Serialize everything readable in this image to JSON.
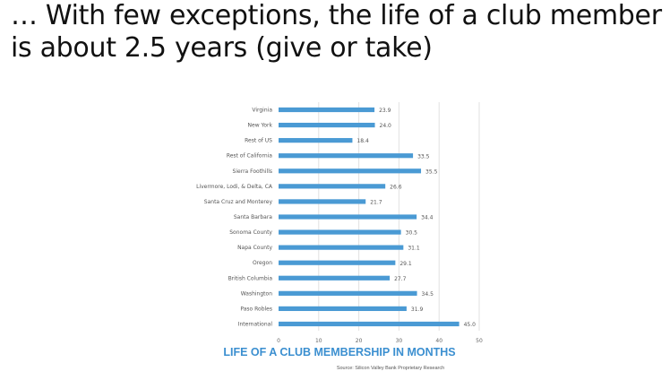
{
  "slide": {
    "title_line1": "… With few exceptions, the life of a club member",
    "title_line2": "is about 2.5 years (give or take)"
  },
  "colors": {
    "bar": "#4a9ad4",
    "chart_title": "#3b8fd0",
    "grid": "#e2e2e2"
  },
  "chart_data": {
    "type": "bar",
    "orientation": "horizontal",
    "categories": [
      "Virginia",
      "New York",
      "Rest of US",
      "Rest of California",
      "Sierra Foothills",
      "Livermore, Lodi, & Delta, CA",
      "Santa Cruz and Monterey",
      "Santa Barbara",
      "Sonoma County",
      "Napa County",
      "Oregon",
      "British Columbia",
      "Washington",
      "Paso Robles",
      "International"
    ],
    "values": [
      23.9,
      24.0,
      18.4,
      33.5,
      35.5,
      26.6,
      21.7,
      34.4,
      30.5,
      31.1,
      29.1,
      27.7,
      34.5,
      31.9,
      45.0
    ],
    "value_labels": [
      "23.9",
      "24.0",
      "18.4",
      "33.5",
      "35.5",
      "26.6",
      "21.7",
      "34.4",
      "30.5",
      "31.1",
      "29.1",
      "27.7",
      "34.5",
      "31.9",
      "45.0"
    ],
    "xlim": [
      0,
      50
    ],
    "x_ticks": [
      "0",
      "10",
      "20",
      "30",
      "40",
      "50"
    ],
    "grid": true,
    "title": "LIFE OF A CLUB MEMBERSHIP IN MONTHS",
    "source": "Source: Silicon Valley Bank Proprietary Research"
  }
}
